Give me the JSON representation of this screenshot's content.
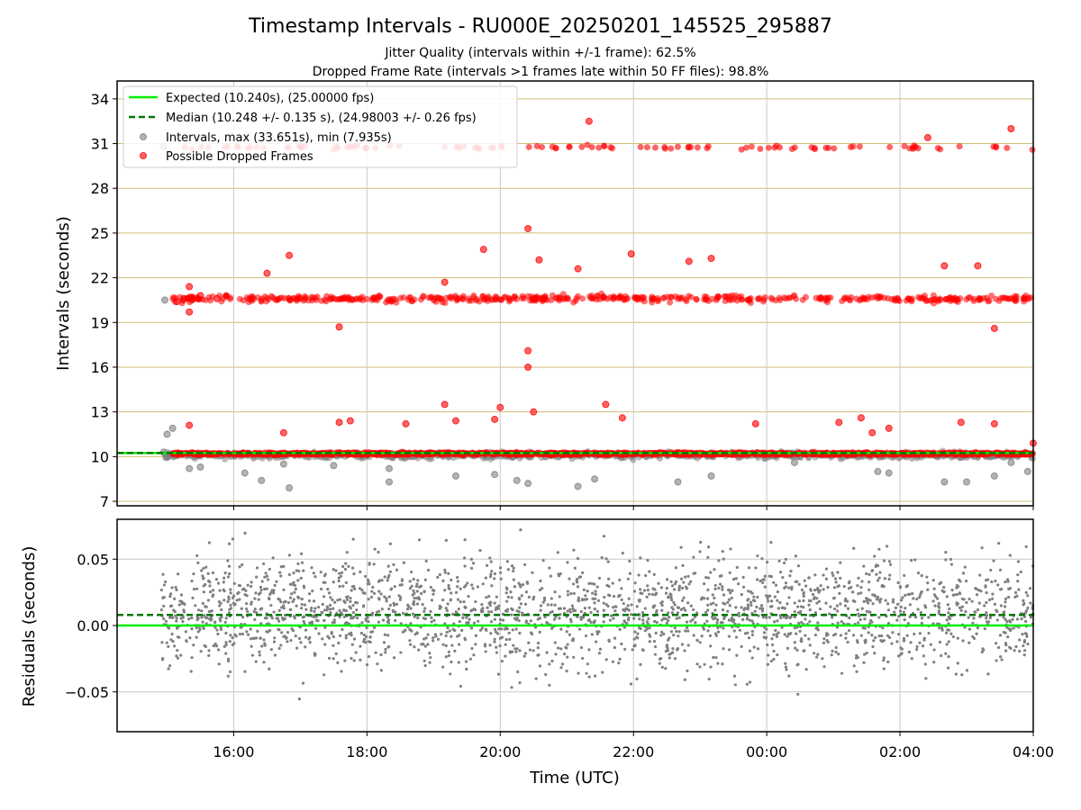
{
  "chart_data": [
    {
      "type": "scatter",
      "title": "Timestamp Intervals - RU000E_20250201_145525_295887",
      "subtitle_1": "Jitter Quality (intervals within +/-1 frame): 62.5%",
      "subtitle_2": "Dropped Frame Rate (intervals >1 frames late within 50 FF files): 98.8%",
      "xlabel": "",
      "ylabel": "Intervals (seconds)",
      "xlim": [
        "14:15",
        "04:00"
      ],
      "ylim": [
        6.7,
        35.2
      ],
      "y_ticks": [
        7,
        10,
        13,
        16,
        19,
        22,
        25,
        28,
        31,
        34
      ],
      "y_tick_labels": [
        "7",
        "10",
        "13",
        "16",
        "19",
        "22",
        "25",
        "28",
        "31",
        "34"
      ],
      "x_ticks": [
        "16:00",
        "18:00",
        "20:00",
        "22:00",
        "00:00",
        "02:00",
        "04:00"
      ],
      "grid": true,
      "legend_position": "upper-left",
      "legend": [
        "Expected (10.240s), (25.00000 fps)",
        "Median (10.248 +/- 0.135 s), (24.98003 +/- 0.26 fps)",
        "Intervals, max (33.651s), min (7.935s)",
        "Possible Dropped Frames"
      ],
      "expected_interval": 10.24,
      "median_interval": 10.248,
      "series": [
        {
          "name": "Possible Dropped Frames",
          "color": "#ff0000",
          "points": [
            [
              "15:09",
              20.4
            ],
            [
              "15:15",
              20.6
            ],
            [
              "15:20",
              21.4
            ],
            [
              "15:20",
              19.7
            ],
            [
              "15:20",
              12.1
            ],
            [
              "15:30",
              20.8
            ],
            [
              "15:45",
              20.6
            ],
            [
              "16:30",
              22.3
            ],
            [
              "16:45",
              11.6
            ],
            [
              "16:50",
              23.5
            ],
            [
              "17:35",
              18.7
            ],
            [
              "17:35",
              12.3
            ],
            [
              "17:45",
              12.4
            ],
            [
              "18:35",
              12.2
            ],
            [
              "19:10",
              21.7
            ],
            [
              "19:10",
              13.5
            ],
            [
              "19:20",
              12.4
            ],
            [
              "19:45",
              23.9
            ],
            [
              "19:55",
              12.5
            ],
            [
              "20:00",
              13.3
            ],
            [
              "20:25",
              25.3
            ],
            [
              "20:25",
              17.1
            ],
            [
              "20:25",
              16.0
            ],
            [
              "20:30",
              13.0
            ],
            [
              "20:35",
              23.2
            ],
            [
              "21:20",
              32.5
            ],
            [
              "21:10",
              22.6
            ],
            [
              "21:35",
              13.5
            ],
            [
              "21:50",
              12.6
            ],
            [
              "21:58",
              23.6
            ],
            [
              "22:50",
              23.1
            ],
            [
              "23:10",
              23.3
            ],
            [
              "23:50",
              12.2
            ],
            [
              "01:05",
              12.3
            ],
            [
              "01:25",
              12.6
            ],
            [
              "01:35",
              11.6
            ],
            [
              "01:50",
              11.9
            ],
            [
              "02:40",
              22.8
            ],
            [
              "02:55",
              12.3
            ],
            [
              "03:10",
              22.8
            ],
            [
              "03:25",
              18.6
            ],
            [
              "03:25",
              12.2
            ],
            [
              "03:40",
              32.0
            ],
            [
              "02:25",
              31.4
            ],
            [
              "04:00",
              10.9
            ]
          ]
        },
        {
          "name": "Intervals, max (33.651s), min (7.935s)",
          "color": "#808080",
          "points": [
            [
              "14:57",
              10.3
            ],
            [
              "15:00",
              11.5
            ],
            [
              "15:05",
              11.9
            ],
            [
              "15:20",
              9.2
            ],
            [
              "15:30",
              9.3
            ],
            [
              "16:10",
              8.9
            ],
            [
              "16:25",
              8.4
            ],
            [
              "16:50",
              7.9
            ],
            [
              "16:45",
              9.5
            ],
            [
              "17:30",
              9.4
            ],
            [
              "18:20",
              8.3
            ],
            [
              "18:20",
              9.2
            ],
            [
              "19:20",
              8.7
            ],
            [
              "19:55",
              8.8
            ],
            [
              "20:15",
              8.4
            ],
            [
              "20:25",
              8.2
            ],
            [
              "21:10",
              8.0
            ],
            [
              "21:25",
              8.5
            ],
            [
              "22:40",
              8.3
            ],
            [
              "23:10",
              8.7
            ],
            [
              "00:25",
              9.6
            ],
            [
              "01:40",
              9.0
            ],
            [
              "01:50",
              8.9
            ],
            [
              "02:40",
              8.3
            ],
            [
              "03:00",
              8.3
            ],
            [
              "03:25",
              8.7
            ],
            [
              "03:40",
              9.6
            ],
            [
              "03:55",
              9.0
            ],
            [
              "14:57",
              30.8
            ],
            [
              "14:58",
              20.5
            ]
          ]
        }
      ]
    },
    {
      "type": "scatter",
      "xlabel": "Time (UTC)",
      "ylabel": "Residuals (seconds)",
      "xlim": [
        "14:15",
        "04:00"
      ],
      "ylim": [
        -0.08,
        0.08
      ],
      "y_ticks": [
        -0.05,
        0.0,
        0.05
      ],
      "y_tick_labels": [
        "−0.05",
        "0.00",
        "0.05"
      ],
      "x_ticks": [
        "16:00",
        "18:00",
        "20:00",
        "22:00",
        "00:00",
        "02:00",
        "04:00"
      ],
      "grid": true,
      "expected_residual": 0.0,
      "median_residual": 0.008,
      "series": [
        {
          "name": "",
          "color": "#808080",
          "x_range": [
            "14:55",
            "04:00"
          ],
          "y_range": [
            -0.08,
            0.08
          ]
        }
      ]
    }
  ],
  "colors": {
    "expected_line": "#00ee00",
    "median_line": "#007700",
    "dropped_points": "#ff0000",
    "interval_points": "#808080",
    "hgrid_top": "#d2bd75",
    "grid": "#c8c8c8"
  }
}
